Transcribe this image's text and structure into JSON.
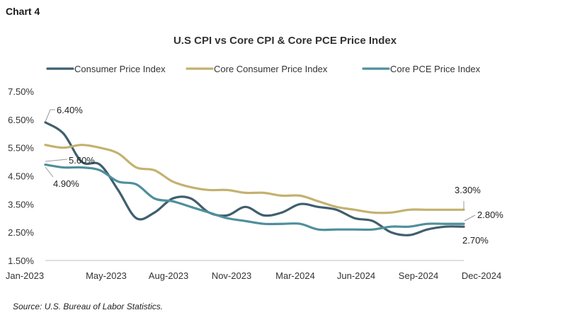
{
  "header": {
    "chart_label": "Chart 4"
  },
  "footer": {
    "source": "Source:  U.S. Bureau of Labor Statistics."
  },
  "chart_data": {
    "type": "line",
    "title": "U.S CPI vs Core CPI & Core PCE Price Index",
    "xlabel": "",
    "ylabel": "",
    "x_ticks": [
      "Jan-2023",
      "May-2023",
      "Aug-2023",
      "Nov-2023",
      "Mar-2024",
      "Jun-2024",
      "Sep-2024",
      "Dec-2024"
    ],
    "y_ticks": [
      "7.50%",
      "6.50%",
      "5.50%",
      "4.50%",
      "3.50%",
      "2.50%",
      "1.50%"
    ],
    "ylim": [
      1.5,
      7.5
    ],
    "x_months": [
      "Jan-2023",
      "Feb-2023",
      "Mar-2023",
      "Apr-2023",
      "May-2023",
      "Jun-2023",
      "Jul-2023",
      "Aug-2023",
      "Sep-2023",
      "Oct-2023",
      "Nov-2023",
      "Dec-2023",
      "Jan-2024",
      "Feb-2024",
      "Mar-2024",
      "Apr-2024",
      "May-2024",
      "Jun-2024",
      "Jul-2024",
      "Aug-2024",
      "Sep-2024",
      "Oct-2024",
      "Nov-2024",
      "Dec-2024"
    ],
    "legend_position": "top",
    "grid": false,
    "series": [
      {
        "name": "Consumer Price Index",
        "color": "#3f5f6e",
        "values": [
          6.4,
          6.0,
          5.0,
          4.9,
          4.0,
          3.0,
          3.2,
          3.7,
          3.7,
          3.2,
          3.1,
          3.4,
          3.1,
          3.2,
          3.5,
          3.4,
          3.3,
          3.0,
          2.9,
          2.5,
          2.4,
          2.6,
          2.7,
          2.7
        ]
      },
      {
        "name": "Core Consumer Price Index",
        "color": "#c4b16f",
        "values": [
          5.6,
          5.5,
          5.6,
          5.5,
          5.3,
          4.8,
          4.7,
          4.3,
          4.1,
          4.0,
          4.0,
          3.9,
          3.9,
          3.8,
          3.8,
          3.6,
          3.4,
          3.3,
          3.2,
          3.2,
          3.3,
          3.3,
          3.3,
          3.3
        ]
      },
      {
        "name": "Core PCE Price Index",
        "color": "#4f8f9c",
        "values": [
          4.9,
          4.8,
          4.8,
          4.7,
          4.3,
          4.2,
          3.7,
          3.6,
          3.4,
          3.2,
          3.0,
          2.9,
          2.8,
          2.8,
          2.8,
          2.6,
          2.6,
          2.6,
          2.6,
          2.7,
          2.7,
          2.8,
          2.8,
          2.8
        ]
      }
    ],
    "annotations": [
      {
        "text": "6.40%"
      },
      {
        "text": "5.60%"
      },
      {
        "text": "4.90%"
      },
      {
        "text": "3.30%"
      },
      {
        "text": "2.80%"
      },
      {
        "text": "2.70%"
      }
    ]
  }
}
